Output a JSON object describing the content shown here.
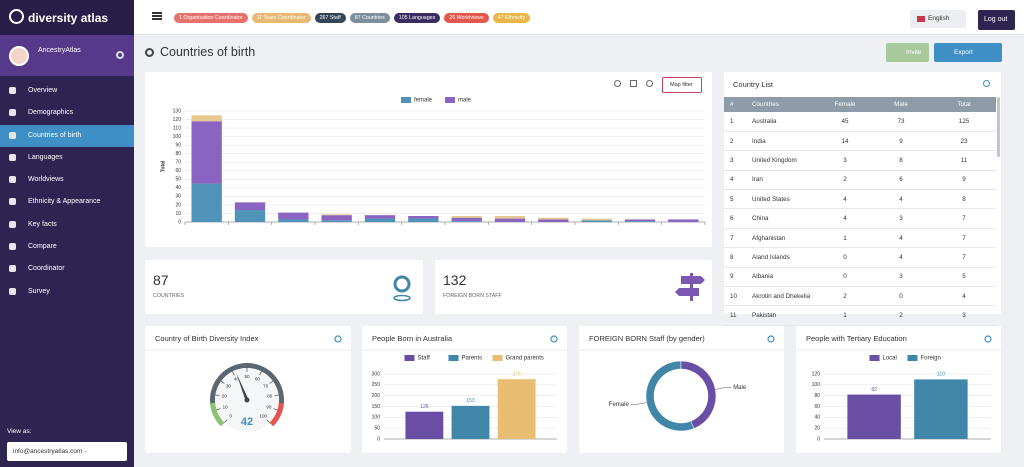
{
  "sidebar": {
    "logo": "diversity atlas",
    "user": "AncestryAtlas",
    "menu": [
      "Overview",
      "Demographics",
      "Countries of birth",
      "Languages",
      "Worldviews",
      "Ethnicity & Appearance",
      "Key facts",
      "Compare",
      "Coordinator",
      "Survey"
    ],
    "active_menu": 2,
    "view_as_label": "View as:",
    "view_as_value": "info@ancestryatlas.com -"
  },
  "topbar": {
    "badges": [
      {
        "label": "1 Organisation Coordinator",
        "color": "#e8726b"
      },
      {
        "label": "11 Team Coordinator",
        "color": "#e9b872"
      },
      {
        "label": "267 Staff",
        "color": "#344556"
      },
      {
        "label": "87 Countries",
        "color": "#7d8e9c"
      },
      {
        "label": "105 Languages",
        "color": "#3a2d62"
      },
      {
        "label": "26 Worldviews",
        "color": "#e2574c"
      },
      {
        "label": "47 Ethnicity",
        "color": "#e8b649"
      }
    ],
    "language": "English",
    "logout": "Log out"
  },
  "page": {
    "title": "Countries of birth",
    "buttons": [
      "Invite",
      "Export"
    ]
  },
  "main_chart": {
    "filter_button": "Map filter"
  },
  "stats": [
    {
      "value": 87,
      "label": "COUNTRIES"
    },
    {
      "value": 132,
      "label": "FOREIGN BORN STAFF"
    }
  ],
  "country_list": {
    "title": "Country List",
    "columns": [
      "#",
      "Countries",
      "Female",
      "Male",
      "Total"
    ],
    "rows": [
      [
        1,
        "Australia",
        45,
        73,
        125
      ],
      [
        2,
        "India",
        14,
        9,
        23
      ],
      [
        3,
        "United Kingdom",
        3,
        8,
        11
      ],
      [
        4,
        "Iran",
        2,
        6,
        9
      ],
      [
        5,
        "United States",
        4,
        4,
        8
      ],
      [
        6,
        "China",
        4,
        3,
        7
      ],
      [
        7,
        "Afghanistan",
        1,
        4,
        7
      ],
      [
        8,
        "Aland Islands",
        0,
        4,
        7
      ],
      [
        9,
        "Albania",
        0,
        3,
        5
      ],
      [
        10,
        "Akrotiri and Dhekelia",
        2,
        0,
        4
      ],
      [
        11,
        "Pakistan",
        1,
        2,
        3
      ]
    ]
  },
  "chart_data": [
    {
      "type": "bar",
      "stacked": true,
      "y_label": "Total",
      "categories": [
        null,
        null,
        null,
        null,
        null,
        null,
        null,
        null,
        null,
        null,
        null,
        null
      ],
      "series": [
        {
          "name": "female",
          "color": "#4f93b8",
          "values": [
            45,
            14,
            3,
            2,
            4,
            4,
            1,
            0,
            0,
            2,
            1,
            0
          ]
        },
        {
          "name": "male",
          "color": "#8a64c0",
          "values": [
            73,
            9,
            8,
            6,
            4,
            3,
            4,
            4,
            3,
            0,
            2,
            3
          ]
        },
        {
          "color": "#e6c88f",
          "values": [
            7,
            0,
            0,
            1,
            0,
            0,
            2,
            3,
            2,
            2,
            0,
            0
          ]
        }
      ],
      "ylim": [
        0,
        130
      ],
      "yticks": [
        0,
        10,
        20,
        30,
        40,
        50,
        60,
        70,
        80,
        90,
        100,
        110,
        120,
        130
      ],
      "grid": true
    },
    {
      "type": "gauge",
      "title": "Country of Birth Diversity Index",
      "value": 42,
      "ylim": [
        0,
        100
      ],
      "yticks": [
        0,
        10,
        20,
        30,
        40,
        50,
        60,
        70,
        80,
        90,
        100
      ]
    },
    {
      "type": "bar",
      "title": "People Born in Australia",
      "categories": [
        null
      ],
      "series": [
        {
          "name": "Staff",
          "color": "#6a4ea5",
          "values": [
            126
          ]
        },
        {
          "name": "Parents",
          "color": "#3f86a8",
          "values": [
            153
          ]
        },
        {
          "name": "Grand parents",
          "color": "#e8bd72",
          "values": [
            276
          ]
        }
      ],
      "ylim": [
        0,
        300
      ],
      "yticks": [
        0,
        50,
        100,
        150,
        200,
        250,
        300
      ],
      "grid": true
    },
    {
      "type": "pie",
      "donut": true,
      "title": "FOREIGN BORN Staff (by gender)",
      "categories": [
        "Female",
        "Male"
      ],
      "values": [
        56,
        44
      ],
      "colors": [
        "#3f86a8",
        "#6a4ea5"
      ]
    },
    {
      "type": "bar",
      "title": "People with Tertiary Education",
      "categories": [
        null
      ],
      "series": [
        {
          "name": "Local",
          "color": "#6a4ea5",
          "values": [
            82
          ]
        },
        {
          "name": "Foreign",
          "color": "#3f86a8",
          "values": [
            110
          ]
        }
      ],
      "ylim": [
        0,
        120
      ],
      "yticks": [
        0,
        20,
        40,
        60,
        80,
        100,
        120
      ],
      "grid": true
    }
  ]
}
